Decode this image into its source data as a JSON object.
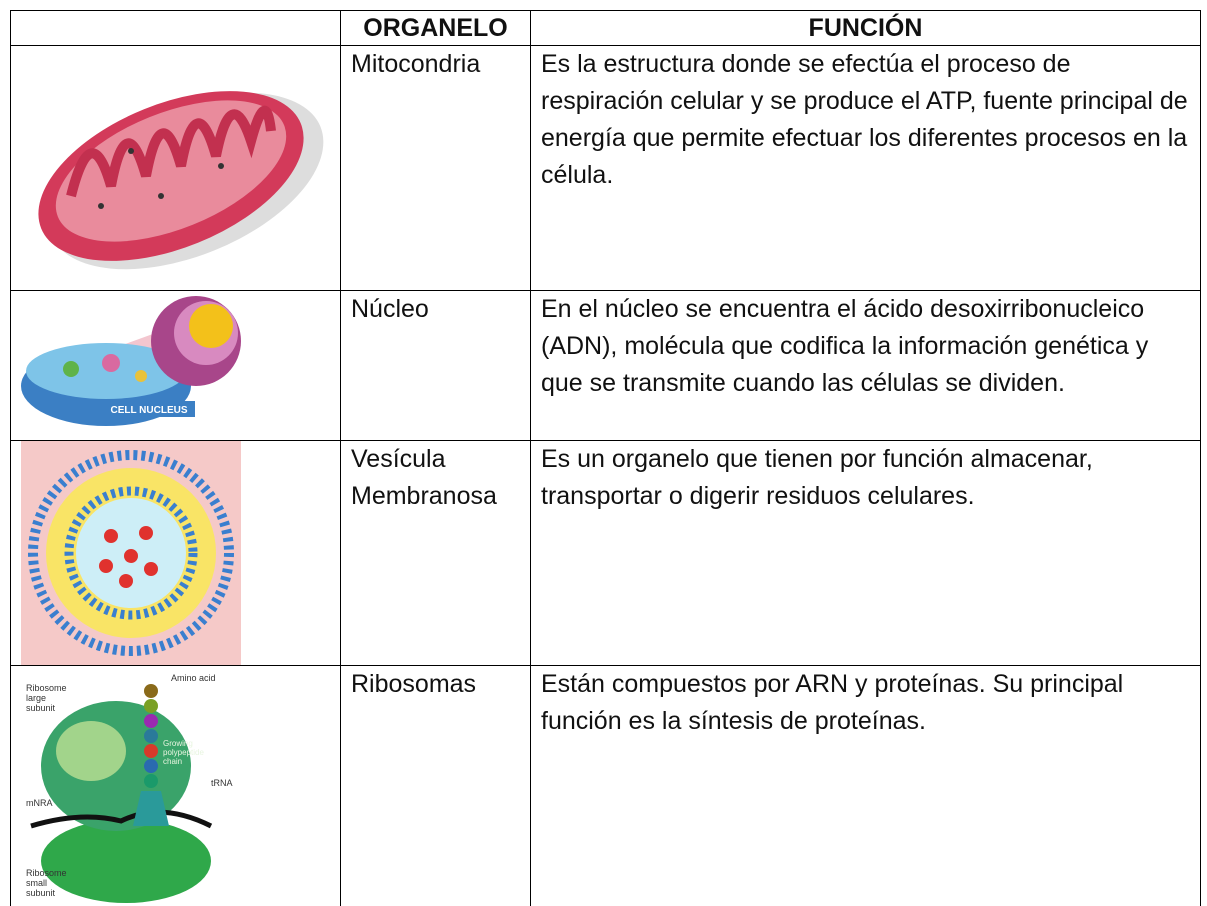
{
  "table": {
    "header": {
      "organelo": "ORGANELO",
      "funcion": "FUNCIÓN"
    },
    "rows": [
      {
        "organelo": "Mitocondria",
        "funcion": "Es la estructura donde se efectúa el proceso de respiración celular y se produce el ATP, fuente principal de energía que permite efectuar los diferentes procesos en la célula."
      },
      {
        "organelo": "Núcleo",
        "funcion": "En el núcleo se encuentra el ácido desoxirribonucleico (ADN), molécula que codifica la información genética y que se transmite cuando las células se dividen.",
        "image_labels": [
          "CELL NUCLEUS"
        ]
      },
      {
        "organelo": "Vesícula Membranosa",
        "funcion": "Es un organelo que tienen por función almacenar, transportar o digerir residuos celulares."
      },
      {
        "organelo": "Ribosomas",
        "funcion": "Están compuestos por ARN y proteínas. Su principal función es la síntesis de proteínas.",
        "image_labels": [
          "Amino acid",
          "Ribosome",
          "large",
          "subunit",
          "Growing",
          "polypeptide",
          "chain",
          "tRNA",
          "mNRA",
          "Ribosome",
          "small",
          "subunit"
        ]
      }
    ]
  }
}
